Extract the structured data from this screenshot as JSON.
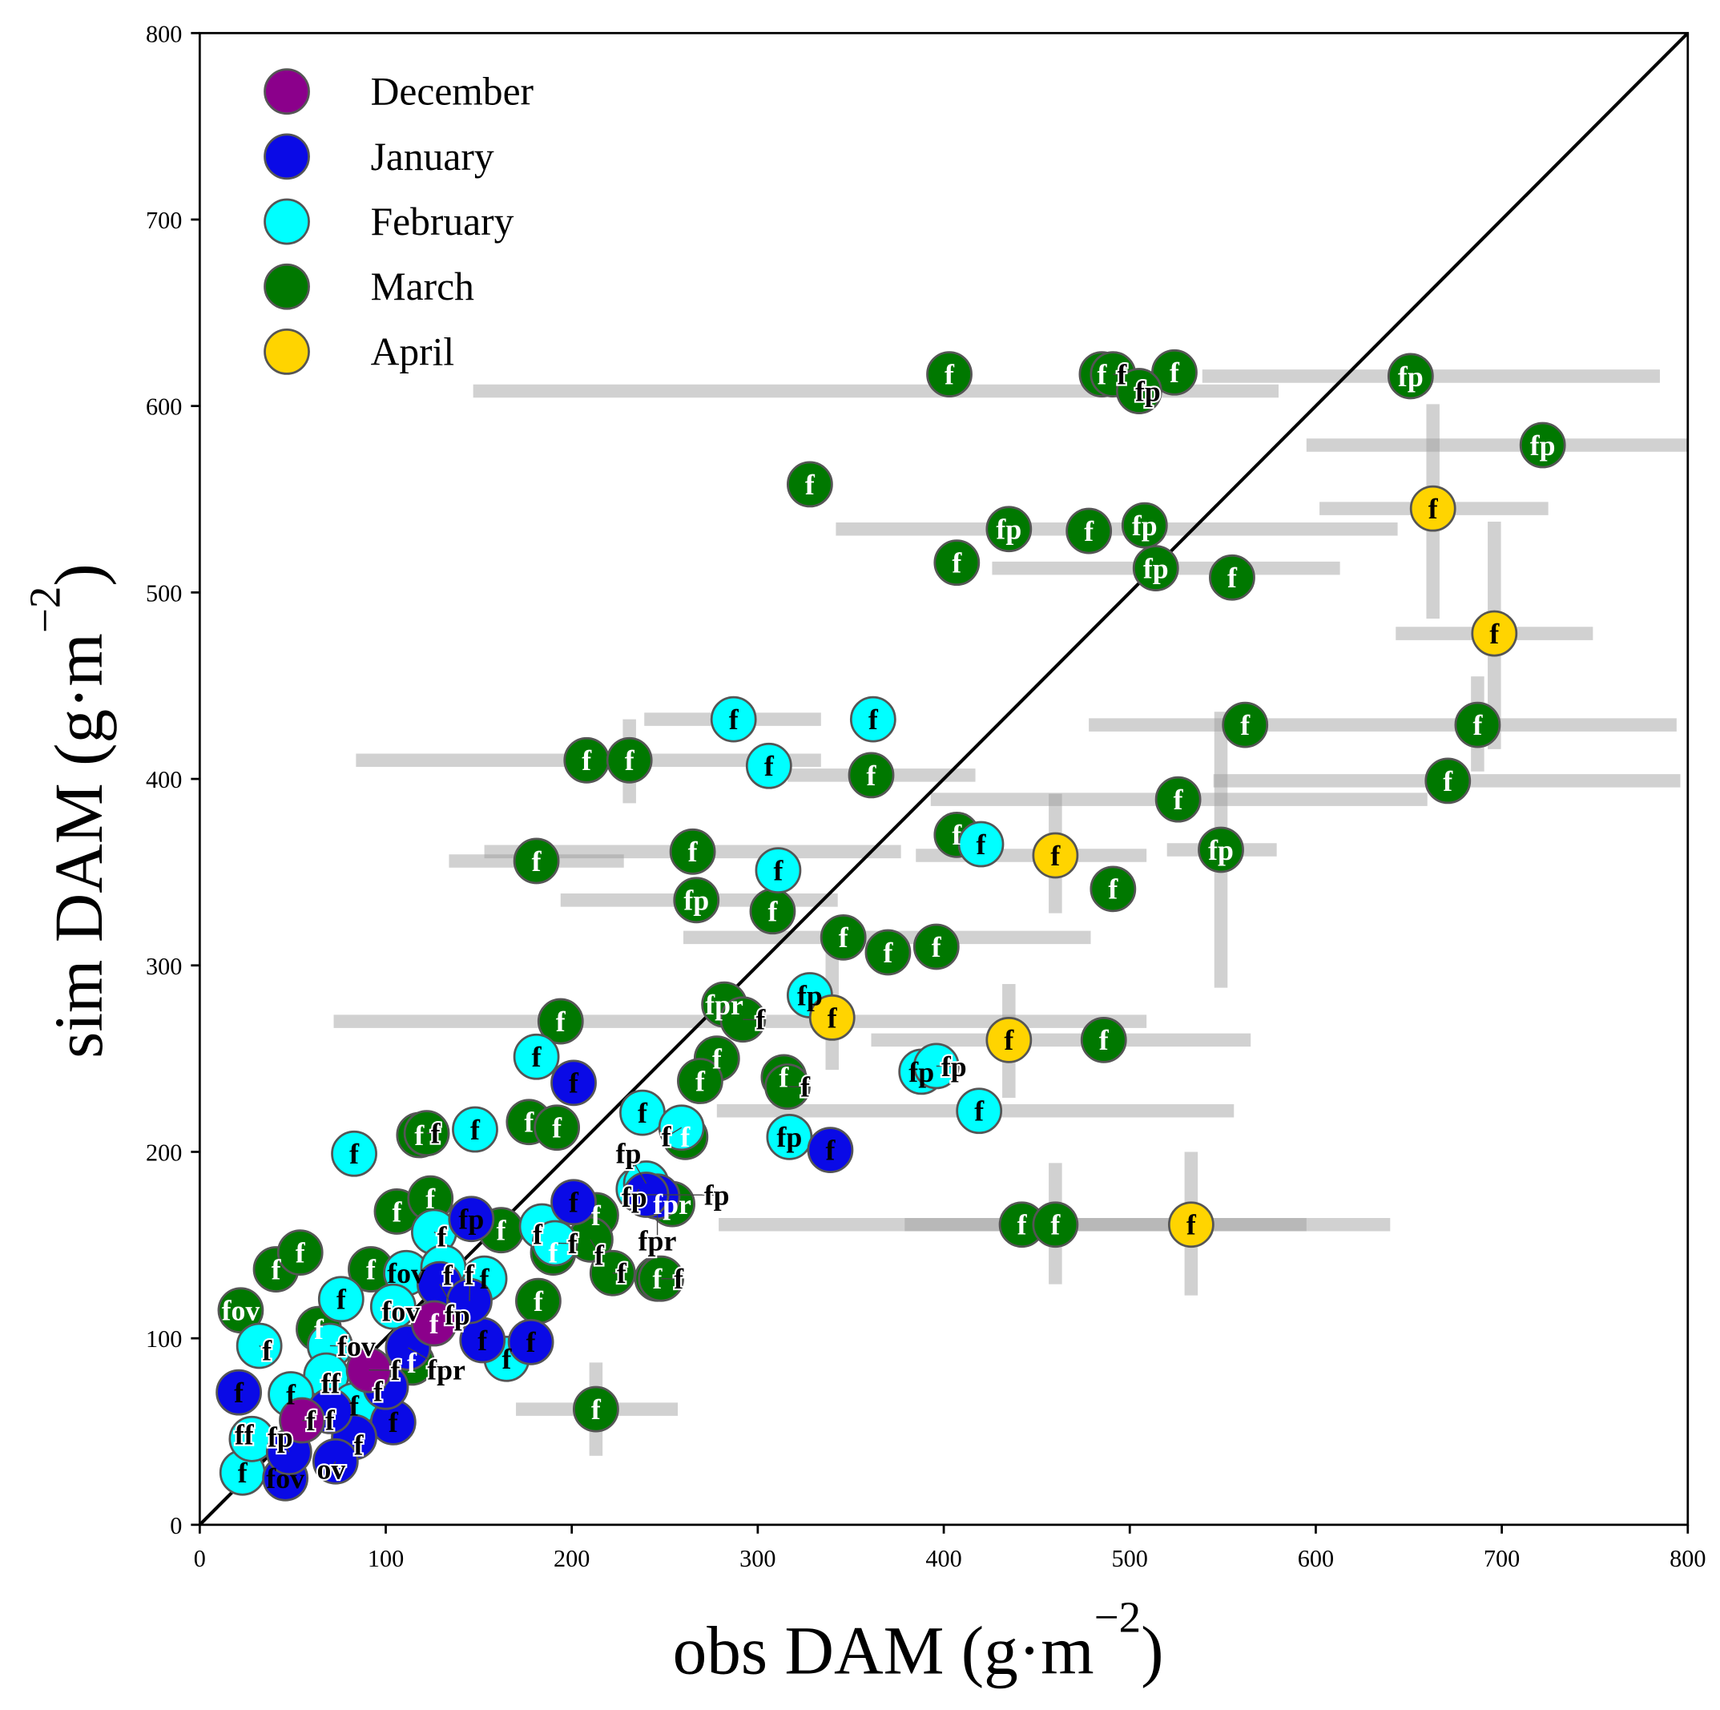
{
  "chart_data": {
    "type": "scatter",
    "title": "",
    "xlabel": "obs DAM (g·m",
    "ylabel": "sim DAM (g·m",
    "unit_exponent": "−2",
    "xlim": [
      0,
      800
    ],
    "ylim": [
      0,
      800
    ],
    "xticks": [
      "0",
      "100",
      "200",
      "300",
      "400",
      "500",
      "600",
      "700",
      "800"
    ],
    "yticks": [
      "0",
      "100",
      "200",
      "300",
      "400",
      "500",
      "600",
      "700",
      "800"
    ],
    "grid": false,
    "reference_line": "1:1",
    "legend_position": "top-left",
    "legend": [
      {
        "name": "December",
        "color": "#8B008B"
      },
      {
        "name": "January",
        "color": "#0A0AE6"
      },
      {
        "name": "February",
        "color": "#00FFFF"
      },
      {
        "name": "March",
        "color": "#007800"
      },
      {
        "name": "April",
        "color": "#FFD400"
      }
    ],
    "series": [
      {
        "name": "March",
        "color": "#007800",
        "label_color": "#ffffff",
        "points": [
          {
            "x": 403,
            "y": 617,
            "label": "f"
          },
          {
            "x": 485,
            "y": 617,
            "label": "f"
          },
          {
            "x": 491,
            "y": 617,
            "label": "f"
          },
          {
            "x": 524,
            "y": 618,
            "label": "f"
          },
          {
            "x": 505,
            "y": 608,
            "label": "fp",
            "xerr": [
              147,
              580
            ]
          },
          {
            "x": 651,
            "y": 616,
            "label": "fp",
            "xerr": [
              539,
              785
            ]
          },
          {
            "x": 722,
            "y": 579,
            "label": "fp",
            "xerr": [
              595,
              800
            ]
          },
          {
            "x": 328,
            "y": 558,
            "label": "f"
          },
          {
            "x": 435,
            "y": 534,
            "label": "fp",
            "xerr": [
              342,
              644
            ]
          },
          {
            "x": 478,
            "y": 533,
            "label": "f"
          },
          {
            "x": 508,
            "y": 536,
            "label": "fp"
          },
          {
            "x": 407,
            "y": 516,
            "label": "f"
          },
          {
            "x": 514,
            "y": 513,
            "label": "fp",
            "xerr": [
              426,
              613
            ]
          },
          {
            "x": 555,
            "y": 508,
            "label": "f"
          },
          {
            "x": 562,
            "y": 429,
            "label": "f",
            "xerr": [
              478,
              794
            ]
          },
          {
            "x": 687,
            "y": 429,
            "label": "f",
            "yerr": [
              404,
              455
            ]
          },
          {
            "x": 671,
            "y": 399,
            "label": "f",
            "xerr": [
              545,
              796
            ]
          },
          {
            "x": 526,
            "y": 389,
            "label": "f",
            "xerr": [
              393,
              660
            ]
          },
          {
            "x": 549,
            "y": 362,
            "label": "fp",
            "xerr": [
              520,
              579
            ],
            "yerr": [
              288,
              436
            ]
          },
          {
            "x": 491,
            "y": 341,
            "label": "f"
          },
          {
            "x": 208,
            "y": 410,
            "label": "f",
            "xerr": [
              84,
              334
            ]
          },
          {
            "x": 231,
            "y": 410,
            "label": "f",
            "yerr": [
              387,
              432
            ]
          },
          {
            "x": 361,
            "y": 402,
            "label": "f",
            "xerr": [
              316,
              417
            ]
          },
          {
            "x": 181,
            "y": 356,
            "label": "f",
            "xerr": [
              134,
              228
            ]
          },
          {
            "x": 265,
            "y": 361,
            "label": "f",
            "xerr": [
              153,
              377
            ]
          },
          {
            "x": 407,
            "y": 370,
            "label": "f"
          },
          {
            "x": 267,
            "y": 335,
            "label": "fp",
            "xerr": [
              194,
              343
            ]
          },
          {
            "x": 308,
            "y": 329,
            "label": "f"
          },
          {
            "x": 346,
            "y": 315,
            "label": "f",
            "xerr": [
              260,
              479
            ]
          },
          {
            "x": 370,
            "y": 307,
            "label": "f"
          },
          {
            "x": 396,
            "y": 310,
            "label": "f"
          },
          {
            "x": 282,
            "y": 279,
            "label": "fpr"
          },
          {
            "x": 292,
            "y": 271,
            "label": "f"
          },
          {
            "x": 194,
            "y": 270,
            "label": "f",
            "xerr": [
              72,
              509
            ]
          },
          {
            "x": 278,
            "y": 250,
            "label": "f"
          },
          {
            "x": 269,
            "y": 238,
            "label": "f"
          },
          {
            "x": 314,
            "y": 240,
            "label": "f"
          },
          {
            "x": 316,
            "y": 235,
            "label": "f"
          },
          {
            "x": 486,
            "y": 260,
            "label": "f",
            "xerr": [
              361,
              565
            ]
          },
          {
            "x": 118,
            "y": 209,
            "label": "f"
          },
          {
            "x": 122,
            "y": 210,
            "label": "f"
          },
          {
            "x": 177,
            "y": 216,
            "label": "f"
          },
          {
            "x": 192,
            "y": 213,
            "label": "f"
          },
          {
            "x": 261,
            "y": 208,
            "label": "f"
          },
          {
            "x": 442,
            "y": 161,
            "label": "f",
            "xerr": [
              279,
              640
            ]
          },
          {
            "x": 460,
            "y": 161,
            "label": "f",
            "yerr": [
              129,
              194
            ]
          },
          {
            "x": 213,
            "y": 62,
            "label": "f",
            "xerr": [
              170,
              257
            ],
            "yerr": [
              37,
              87
            ]
          },
          {
            "x": 41,
            "y": 137,
            "label": "f"
          },
          {
            "x": 54,
            "y": 146,
            "label": "f"
          },
          {
            "x": 22,
            "y": 115,
            "label": "fov"
          },
          {
            "x": 106,
            "y": 168,
            "label": "f"
          },
          {
            "x": 124,
            "y": 175,
            "label": "f"
          },
          {
            "x": 162,
            "y": 158,
            "label": "f"
          },
          {
            "x": 213,
            "y": 166,
            "label": "f"
          },
          {
            "x": 210,
            "y": 153,
            "label": "f"
          },
          {
            "x": 222,
            "y": 135,
            "label": "f"
          },
          {
            "x": 246,
            "y": 132,
            "label": "f"
          },
          {
            "x": 248,
            "y": 132,
            "label": "f"
          },
          {
            "x": 182,
            "y": 120,
            "label": "f"
          },
          {
            "x": 190,
            "y": 146,
            "label": "f"
          },
          {
            "x": 254,
            "y": 172,
            "label": "fpr"
          },
          {
            "x": 92,
            "y": 137,
            "label": "f"
          },
          {
            "x": 114,
            "y": 87,
            "label": "f"
          },
          {
            "x": 64,
            "y": 105,
            "label": "f"
          }
        ]
      },
      {
        "name": "February",
        "color": "#00FFFF",
        "label_color": "#000000",
        "points": [
          {
            "x": 287,
            "y": 432,
            "label": "f",
            "xerr": [
              239,
              334
            ]
          },
          {
            "x": 362,
            "y": 432,
            "label": "f"
          },
          {
            "x": 306,
            "y": 407,
            "label": "f"
          },
          {
            "x": 420,
            "y": 365,
            "label": "f"
          },
          {
            "x": 311,
            "y": 351,
            "label": "f"
          },
          {
            "x": 328,
            "y": 284,
            "label": "fp"
          },
          {
            "x": 181,
            "y": 251,
            "label": "f"
          },
          {
            "x": 388,
            "y": 243,
            "label": "fp"
          },
          {
            "x": 396,
            "y": 246,
            "label": "fp"
          },
          {
            "x": 419,
            "y": 222,
            "label": "f",
            "xerr": [
              278,
              556
            ]
          },
          {
            "x": 238,
            "y": 221,
            "label": "f"
          },
          {
            "x": 259,
            "y": 213,
            "label": "f"
          },
          {
            "x": 317,
            "y": 208,
            "label": "fp"
          },
          {
            "x": 83,
            "y": 199,
            "label": "f"
          },
          {
            "x": 148,
            "y": 212,
            "label": "f"
          },
          {
            "x": 236,
            "y": 180,
            "label": "fp"
          },
          {
            "x": 240,
            "y": 183,
            "label": "fp"
          },
          {
            "x": 126,
            "y": 157,
            "label": "f"
          },
          {
            "x": 184,
            "y": 160,
            "label": "f"
          },
          {
            "x": 191,
            "y": 151,
            "label": "f"
          },
          {
            "x": 153,
            "y": 132,
            "label": "f"
          },
          {
            "x": 165,
            "y": 89,
            "label": "f"
          },
          {
            "x": 111,
            "y": 135,
            "label": "fov"
          },
          {
            "x": 104,
            "y": 117,
            "label": "fov"
          },
          {
            "x": 76,
            "y": 121,
            "label": "f"
          },
          {
            "x": 70,
            "y": 96,
            "label": "fov"
          },
          {
            "x": 68,
            "y": 80,
            "label": "ff"
          },
          {
            "x": 32,
            "y": 96,
            "label": "f"
          },
          {
            "x": 49,
            "y": 70,
            "label": "f"
          },
          {
            "x": 23,
            "y": 28,
            "label": "f"
          },
          {
            "x": 28,
            "y": 46,
            "label": "ff"
          },
          {
            "x": 83,
            "y": 64,
            "label": "f"
          },
          {
            "x": 131,
            "y": 138,
            "label": "f"
          }
        ]
      },
      {
        "name": "January",
        "color": "#0A0AE6",
        "label_color": "#000000",
        "points": [
          {
            "x": 201,
            "y": 237,
            "label": "f"
          },
          {
            "x": 339,
            "y": 201,
            "label": "f"
          },
          {
            "x": 146,
            "y": 164,
            "label": "fp"
          },
          {
            "x": 201,
            "y": 173,
            "label": "f"
          },
          {
            "x": 246,
            "y": 176,
            "label": "fpr"
          },
          {
            "x": 240,
            "y": 177,
            "label": "fp"
          },
          {
            "x": 129,
            "y": 129,
            "label": "fp"
          },
          {
            "x": 152,
            "y": 99,
            "label": "f"
          },
          {
            "x": 178,
            "y": 98,
            "label": "f"
          },
          {
            "x": 21,
            "y": 71,
            "label": "f"
          },
          {
            "x": 104,
            "y": 55,
            "label": "f"
          },
          {
            "x": 83,
            "y": 47,
            "label": "f"
          },
          {
            "x": 70,
            "y": 61,
            "label": "f"
          },
          {
            "x": 46,
            "y": 25,
            "label": "fov"
          },
          {
            "x": 73,
            "y": 34,
            "label": "ov"
          },
          {
            "x": 112,
            "y": 95,
            "label": "fpr"
          },
          {
            "x": 145,
            "y": 120,
            "label": "f"
          },
          {
            "x": 48,
            "y": 39,
            "label": "fp"
          },
          {
            "x": 100,
            "y": 74,
            "label": "f"
          }
        ]
      },
      {
        "name": "December",
        "color": "#8B008B",
        "label_color": "#ffffff",
        "points": [
          {
            "x": 55,
            "y": 56,
            "label": "f"
          },
          {
            "x": 126,
            "y": 108,
            "label": "f"
          },
          {
            "x": 91,
            "y": 83,
            "label": "f"
          }
        ]
      },
      {
        "name": "April",
        "color": "#FFD400",
        "label_color": "#000000",
        "points": [
          {
            "x": 663,
            "y": 545,
            "label": "f",
            "xerr": [
              602,
              725
            ],
            "yerr": [
              486,
              601
            ]
          },
          {
            "x": 696,
            "y": 478,
            "label": "f",
            "xerr": [
              643,
              749
            ],
            "yerr": [
              416,
              538
            ]
          },
          {
            "x": 460,
            "y": 359,
            "label": "f",
            "xerr": [
              385,
              509
            ],
            "yerr": [
              328,
              392
            ]
          },
          {
            "x": 340,
            "y": 272,
            "label": "f",
            "yerr": [
              244,
              309
            ]
          },
          {
            "x": 435,
            "y": 260,
            "label": "f",
            "yerr": [
              229,
              290
            ]
          },
          {
            "x": 533,
            "y": 161,
            "label": "f",
            "xerr": [
              379,
              595
            ],
            "yerr": [
              123,
              200
            ]
          }
        ]
      }
    ]
  }
}
